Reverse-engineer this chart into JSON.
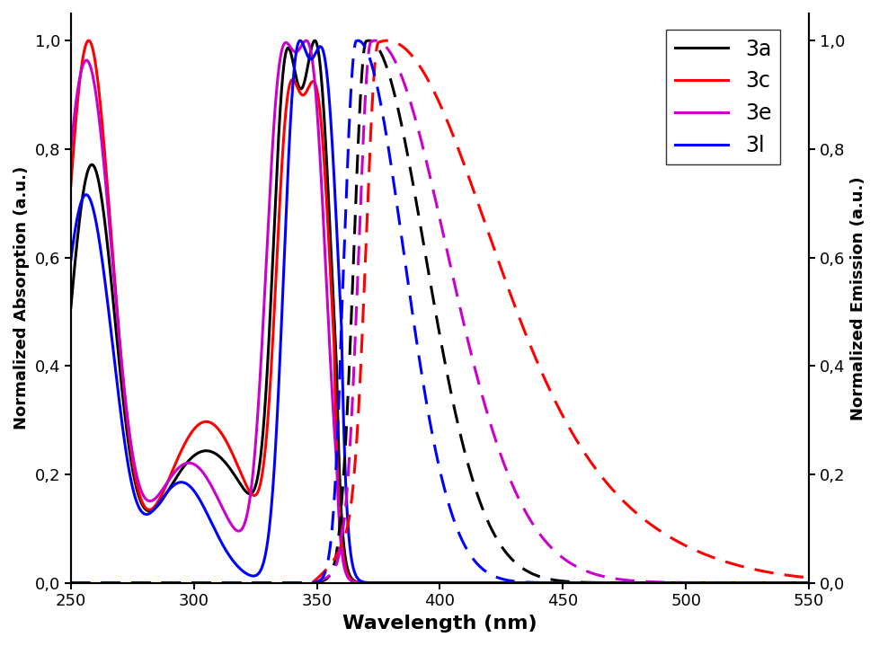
{
  "colors": {
    "3a": "#000000",
    "3c": "#ff0000",
    "3e": "#cc00cc",
    "3l": "#0000ff"
  },
  "legend_labels": [
    "3a",
    "3c",
    "3e",
    "3l"
  ],
  "xlabel": "Wavelength (nm)",
  "ylabel_left": "Normalized Absorption (a.u.)",
  "ylabel_right": "Normalized Emission (a.u.)",
  "xlim": [
    250,
    550
  ],
  "ylim": [
    0.0,
    1.05
  ],
  "xticks": [
    250,
    300,
    350,
    400,
    450,
    500,
    550
  ],
  "yticks": [
    0.0,
    0.2,
    0.4,
    0.6,
    0.8,
    1.0
  ]
}
